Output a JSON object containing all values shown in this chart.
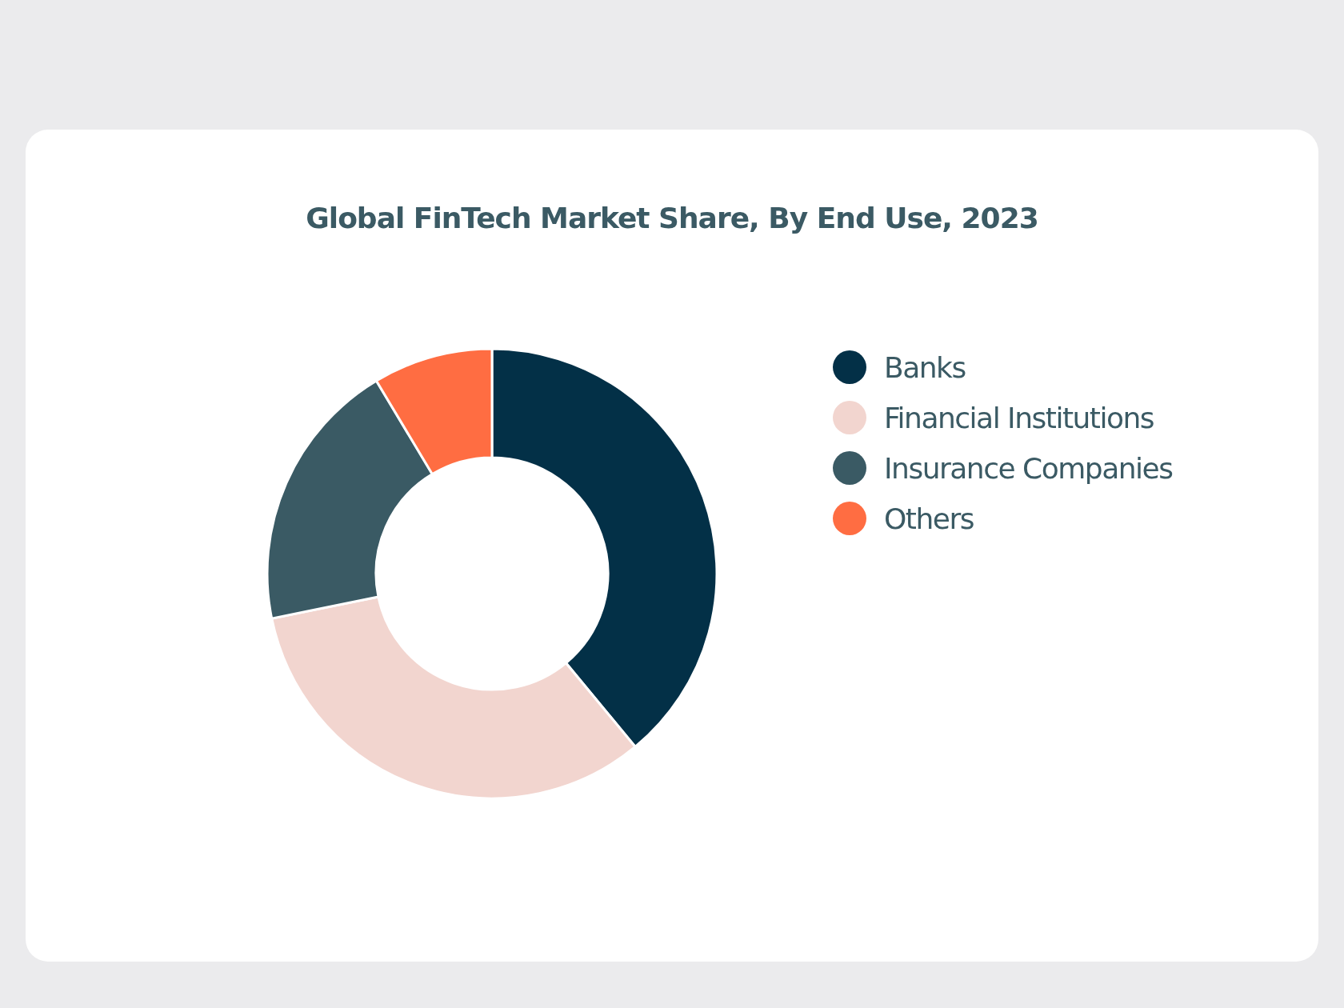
{
  "chart_data": {
    "type": "donut",
    "title": "Global FinTech Market Share, By End Use, 2023",
    "categories": [
      "Banks",
      "Financial Institutions",
      "Insurance Companies",
      "Others"
    ],
    "values": [
      39,
      32.8,
      19.6,
      8.6
    ],
    "colors": [
      "#033047",
      "#f2d5cf",
      "#3a5a64",
      "#ff6d42"
    ],
    "legend": "right"
  }
}
